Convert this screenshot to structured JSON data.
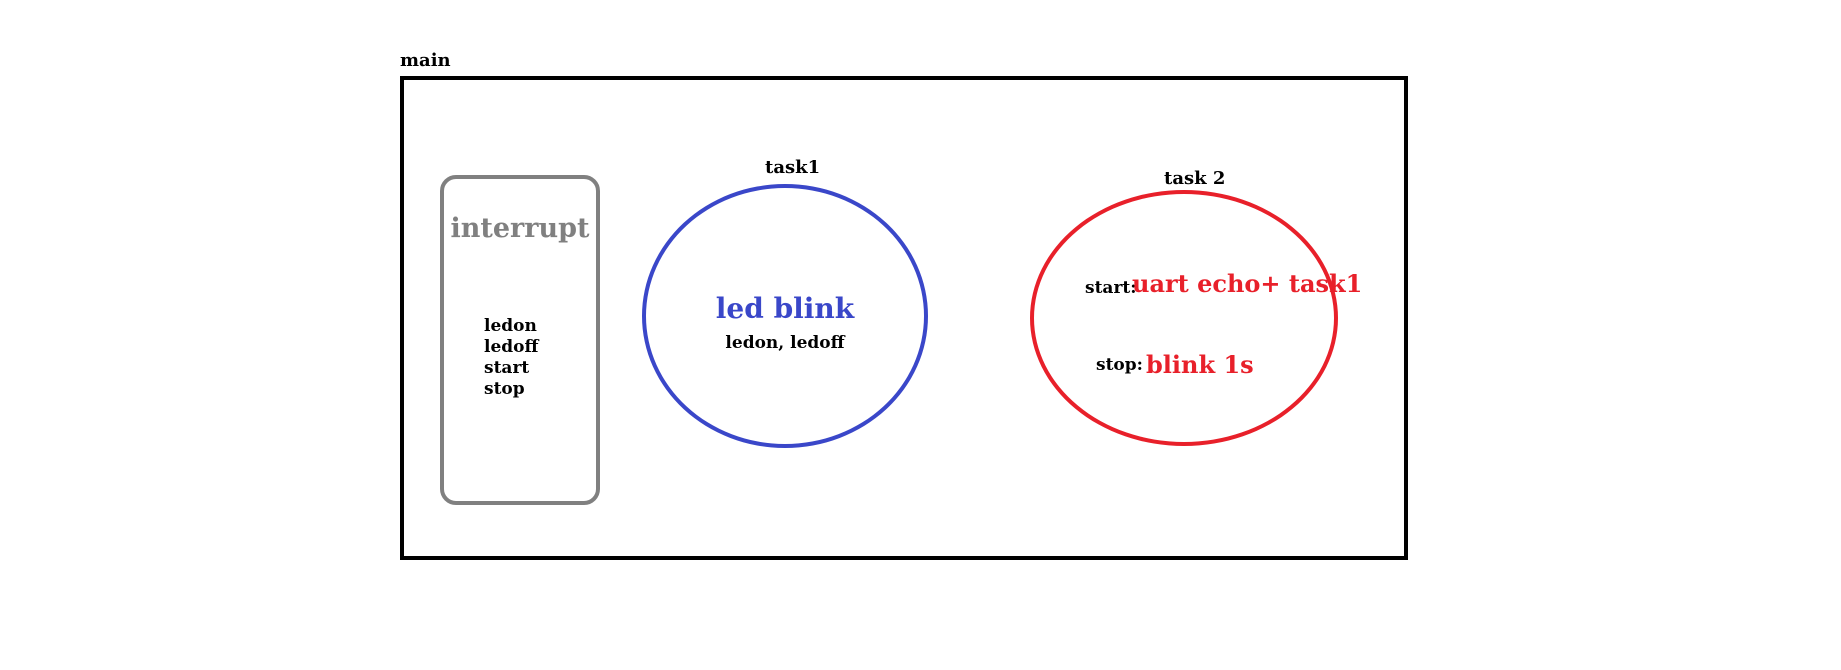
{
  "colors": {
    "border_main": "#000000",
    "interrupt": "#808080",
    "task1": "#3a47c9",
    "task2": "#e8202a"
  },
  "main": {
    "label": "main"
  },
  "interrupt": {
    "title": "interrupt",
    "items": [
      "ledon",
      "ledoff",
      "start",
      "stop"
    ]
  },
  "task1": {
    "label": "task1",
    "title": "led blink",
    "subtitle": "ledon, ledoff"
  },
  "task2": {
    "label": "task 2",
    "start_key": "start:",
    "start_value": "uart echo+ task1",
    "stop_key": "stop:",
    "stop_value": "blink 1s"
  }
}
